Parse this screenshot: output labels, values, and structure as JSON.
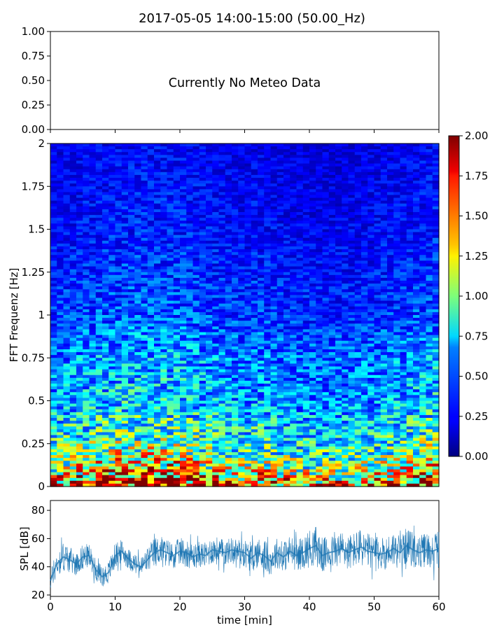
{
  "title": "2017-05-05 14:00-15:00 (50.00_Hz)",
  "chart_data": [
    {
      "type": "line",
      "panel": "meteo",
      "annotation": "Currently No Meteo Data",
      "ylim": [
        0,
        1
      ],
      "y_ticks": [
        "0.00",
        "0.25",
        "0.50",
        "0.75",
        "1.00"
      ],
      "x_ticks_visible": false,
      "series": []
    },
    {
      "type": "heatmap",
      "panel": "spectrogram",
      "ylabel": "FFT Frequenz [Hz]",
      "xlim": [
        0,
        60
      ],
      "ylim": [
        0,
        2
      ],
      "y_ticks": [
        "0",
        "0.25",
        "0.5",
        "0.75",
        "1",
        "1.25",
        "1.5",
        "1.75",
        "2"
      ],
      "colormap": "jet",
      "clim": [
        0,
        2
      ],
      "colorbar_ticks": [
        "0.00",
        "0.25",
        "0.50",
        "0.75",
        "1.00",
        "1.25",
        "1.50",
        "1.75",
        "2.00"
      ],
      "description_levels": {
        "freq_bands_hz": [
          0.0,
          0.1,
          0.25,
          0.5,
          0.75,
          1.0,
          1.5,
          2.0
        ],
        "typical_level": [
          1.6,
          1.1,
          0.8,
          0.55,
          0.5,
          0.35,
          0.25,
          0.2
        ]
      }
    },
    {
      "type": "line",
      "panel": "spl",
      "xlabel": "time [min]",
      "ylabel": "SPL [dB]",
      "xlim": [
        0,
        60
      ],
      "ylim": [
        19,
        87
      ],
      "x_ticks": [
        "0",
        "10",
        "20",
        "30",
        "40",
        "50",
        "60"
      ],
      "y_ticks": [
        "20",
        "40",
        "60",
        "80"
      ],
      "series": [
        {
          "color": "#1f77b4",
          "x": [
            0,
            1,
            2,
            3,
            4,
            5,
            6,
            7,
            8,
            9,
            10,
            11,
            12,
            13,
            14,
            15,
            16,
            17,
            18,
            19,
            20,
            21,
            22,
            23,
            24,
            25,
            26,
            27,
            28,
            29,
            30,
            31,
            32,
            33,
            34,
            35,
            36,
            37,
            38,
            39,
            40,
            41,
            42,
            43,
            44,
            45,
            46,
            47,
            48,
            49,
            50,
            51,
            52,
            53,
            54,
            55,
            56,
            57,
            58,
            59,
            60
          ],
          "mean": [
            30,
            42,
            47,
            45,
            42,
            47,
            48,
            38,
            33,
            36,
            48,
            51,
            46,
            42,
            40,
            45,
            50,
            52,
            50,
            48,
            51,
            50,
            47,
            49,
            48,
            52,
            51,
            50,
            52,
            51,
            50,
            46,
            50,
            48,
            44,
            50,
            47,
            51,
            48,
            50,
            53,
            55,
            48,
            50,
            51,
            53,
            50,
            52,
            54,
            51,
            50,
            49,
            50,
            53,
            50,
            55,
            52,
            50,
            52,
            51,
            53
          ],
          "spread": [
            8,
            10,
            12,
            10,
            9,
            10,
            9,
            8,
            8,
            9,
            10,
            9,
            8,
            8,
            8,
            10,
            12,
            11,
            11,
            10,
            11,
            11,
            10,
            10,
            10,
            11,
            11,
            10,
            10,
            10,
            11,
            11,
            12,
            13,
            11,
            12,
            12,
            13,
            12,
            13,
            15,
            16,
            14,
            13,
            13,
            14,
            14,
            14,
            15,
            14,
            13,
            13,
            13,
            14,
            13,
            14,
            14,
            13,
            14,
            14,
            15
          ]
        }
      ]
    }
  ]
}
